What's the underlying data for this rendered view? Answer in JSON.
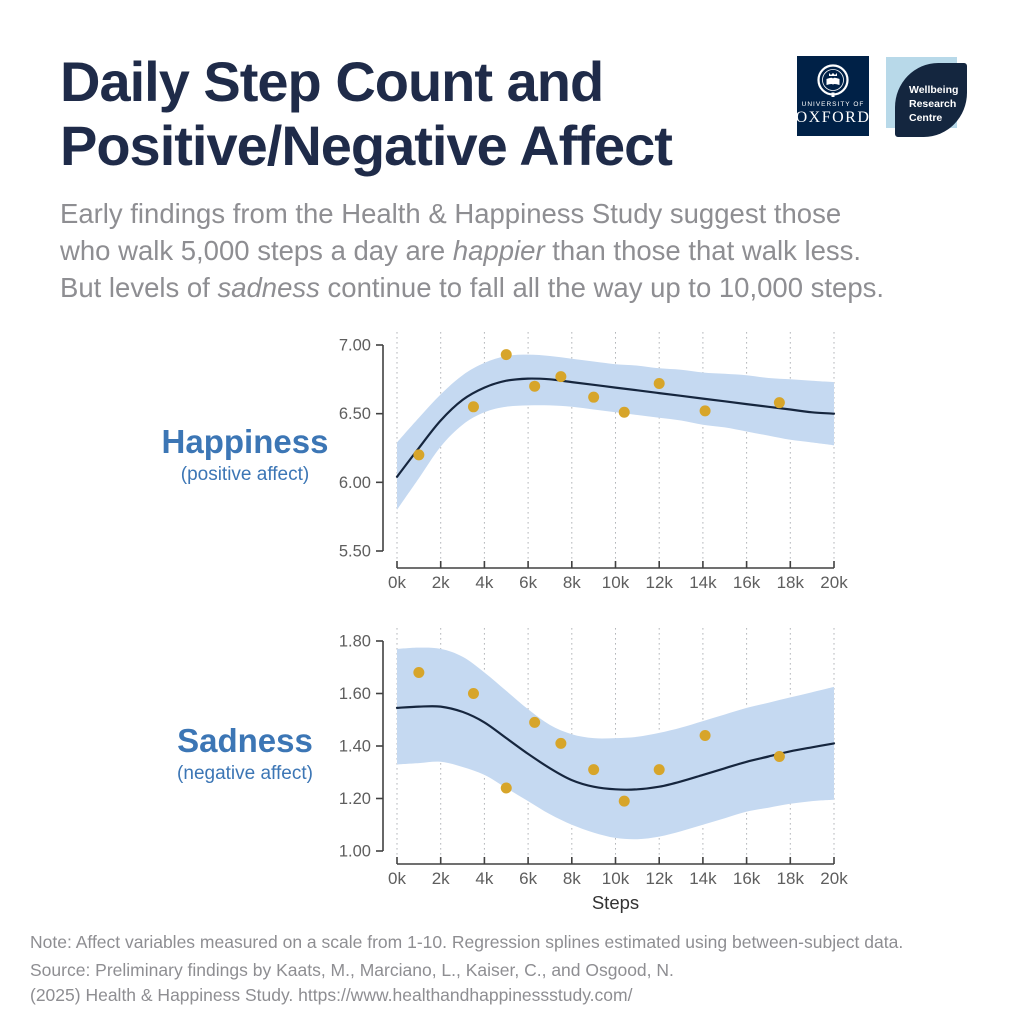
{
  "header": {
    "title_line1": "Daily Step Count and",
    "title_line2": "Positive/Negative Affect",
    "logos": {
      "oxford": {
        "line1": "UNIVERSITY OF",
        "line2": "OXFORD"
      },
      "wrc": {
        "line1": "Wellbeing",
        "line2": "Research",
        "line3": "Centre"
      }
    }
  },
  "subtitle": {
    "line1": "Early findings from the Health & Happiness Study suggest those",
    "line2_a": "who walk 5,000 steps a day are ",
    "line2_em": "happier",
    "line2_b": " than those that walk less.",
    "line3_a": "But levels of ",
    "line3_em": "sadness",
    "line3_b": " continue to fall all the way up to 10,000 steps."
  },
  "colors": {
    "title_navy": "#1f2b49",
    "text_gray": "#8e8e92",
    "accent_blue": "#3c76b5",
    "band_blue": "#c5d9f1",
    "spline_navy": "#16263e",
    "point_gold": "#d7a52a",
    "axis_dark": "#414141",
    "tick_label_gray": "#5e5e5e",
    "grid_gray": "#b3b6ba",
    "oxford_navy": "#002147",
    "wrc_light_blue": "#b8d9e9",
    "wrc_leaf_navy": "#14263f"
  },
  "chart_data": [
    {
      "id": "happiness",
      "type": "line",
      "label": "Happiness",
      "sublabel": "(positive affect)",
      "xlabel": "",
      "legend": "regression spline with confidence band and scatter points",
      "grid": "vertical-dotted",
      "xlim": [
        0,
        20000
      ],
      "ylim": [
        5.5,
        7.0
      ],
      "x_ticks": [
        "0k",
        "2k",
        "4k",
        "6k",
        "8k",
        "10k",
        "12k",
        "14k",
        "16k",
        "18k",
        "20k"
      ],
      "x_tick_values": [
        0,
        2000,
        4000,
        6000,
        8000,
        10000,
        12000,
        14000,
        16000,
        18000,
        20000
      ],
      "y_ticks": [
        "7.00",
        "6.50",
        "6.00",
        "5.50"
      ],
      "y_tick_values": [
        7.0,
        6.5,
        6.0,
        5.5
      ],
      "x": [
        0,
        1000,
        2000,
        3000,
        4000,
        5000,
        6000,
        7000,
        8000,
        9000,
        10000,
        11000,
        12000,
        13000,
        14000,
        15000,
        16000,
        17000,
        18000,
        19000,
        20000
      ],
      "spline": [
        6.04,
        6.25,
        6.45,
        6.6,
        6.69,
        6.74,
        6.755,
        6.75,
        6.73,
        6.71,
        6.69,
        6.67,
        6.65,
        6.63,
        6.61,
        6.59,
        6.57,
        6.55,
        6.53,
        6.51,
        6.5
      ],
      "band_upper": [
        6.29,
        6.47,
        6.64,
        6.78,
        6.87,
        6.92,
        6.93,
        6.92,
        6.9,
        6.88,
        6.86,
        6.85,
        6.83,
        6.82,
        6.8,
        6.79,
        6.78,
        6.76,
        6.75,
        6.74,
        6.73
      ],
      "band_lower": [
        5.8,
        6.03,
        6.26,
        6.42,
        6.51,
        6.55,
        6.56,
        6.56,
        6.55,
        6.53,
        6.51,
        6.49,
        6.47,
        6.45,
        6.42,
        6.4,
        6.37,
        6.34,
        6.31,
        6.29,
        6.27
      ],
      "points": [
        [
          1000,
          6.2
        ],
        [
          3500,
          6.55
        ],
        [
          5000,
          6.93
        ],
        [
          6300,
          6.7
        ],
        [
          7500,
          6.77
        ],
        [
          9000,
          6.62
        ],
        [
          10400,
          6.51
        ],
        [
          12000,
          6.72
        ],
        [
          14100,
          6.52
        ],
        [
          17500,
          6.58
        ]
      ]
    },
    {
      "id": "sadness",
      "type": "line",
      "label": "Sadness",
      "sublabel": "(negative affect)",
      "xlabel": "Steps",
      "legend": "regression spline with confidence band and scatter points",
      "grid": "vertical-dotted",
      "xlim": [
        0,
        20000
      ],
      "ylim": [
        1.0,
        1.8
      ],
      "x_ticks": [
        "0k",
        "2k",
        "4k",
        "6k",
        "8k",
        "10k",
        "12k",
        "14k",
        "16k",
        "18k",
        "20k"
      ],
      "x_tick_values": [
        0,
        2000,
        4000,
        6000,
        8000,
        10000,
        12000,
        14000,
        16000,
        18000,
        20000
      ],
      "y_ticks": [
        "1.80",
        "1.60",
        "1.40",
        "1.20",
        "1.00"
      ],
      "y_tick_values": [
        1.8,
        1.6,
        1.4,
        1.2,
        1.0
      ],
      "x": [
        0,
        1000,
        2000,
        3000,
        4000,
        5000,
        6000,
        7000,
        8000,
        9000,
        10000,
        11000,
        12000,
        13000,
        14000,
        15000,
        16000,
        17000,
        18000,
        19000,
        20000
      ],
      "spline": [
        1.545,
        1.55,
        1.55,
        1.53,
        1.49,
        1.43,
        1.37,
        1.315,
        1.27,
        1.245,
        1.235,
        1.235,
        1.245,
        1.265,
        1.29,
        1.315,
        1.34,
        1.36,
        1.38,
        1.395,
        1.41
      ],
      "band_upper": [
        1.77,
        1.775,
        1.77,
        1.74,
        1.68,
        1.61,
        1.54,
        1.48,
        1.445,
        1.43,
        1.43,
        1.435,
        1.45,
        1.47,
        1.495,
        1.52,
        1.545,
        1.565,
        1.585,
        1.605,
        1.625
      ],
      "band_lower": [
        1.33,
        1.335,
        1.34,
        1.32,
        1.29,
        1.24,
        1.19,
        1.14,
        1.1,
        1.07,
        1.05,
        1.045,
        1.055,
        1.075,
        1.1,
        1.125,
        1.15,
        1.165,
        1.18,
        1.19,
        1.195
      ],
      "points": [
        [
          1000,
          1.68
        ],
        [
          3500,
          1.6
        ],
        [
          5000,
          1.24
        ],
        [
          6300,
          1.49
        ],
        [
          7500,
          1.41
        ],
        [
          9000,
          1.31
        ],
        [
          10400,
          1.19
        ],
        [
          12000,
          1.31
        ],
        [
          14100,
          1.44
        ],
        [
          17500,
          1.36
        ]
      ]
    }
  ],
  "footer": {
    "note": "Note: Affect variables measured on a scale from 1-10. Regression splines estimated using between-subject data.",
    "source_line1": "Source: Preliminary findings by Kaats, M., Marciano, L., Kaiser, C., and Osgood, N.",
    "source_line2": "(2025) Health & Happiness Study. https://www.healthandhappinessstudy.com/"
  }
}
